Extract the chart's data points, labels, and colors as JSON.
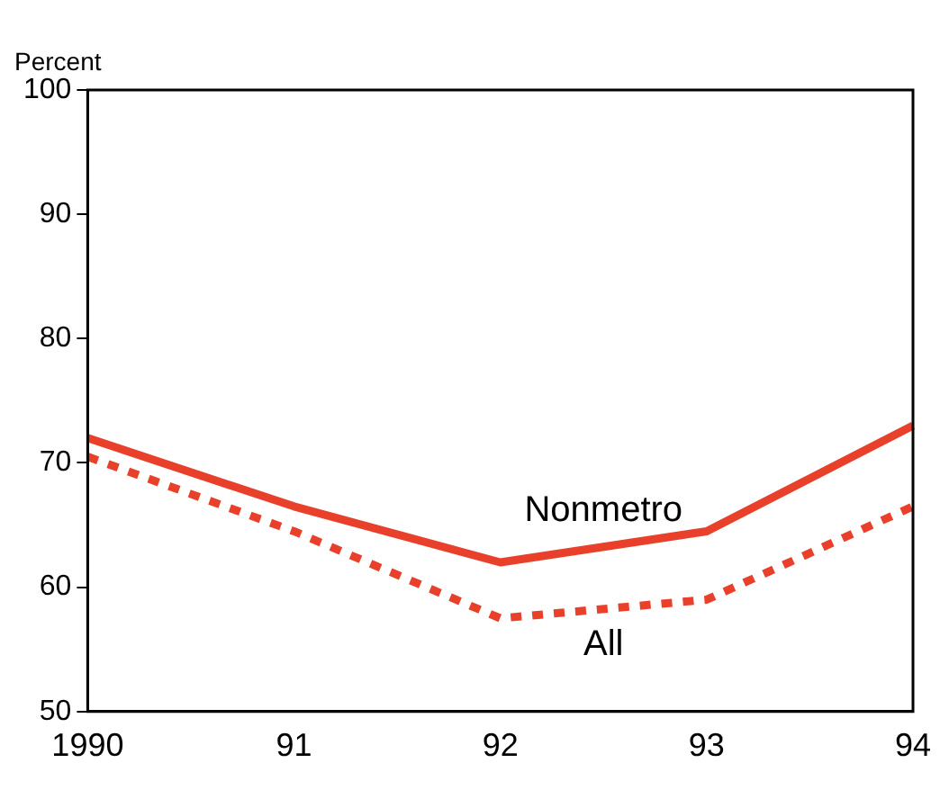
{
  "chart_data": {
    "type": "line",
    "ylabel": "Percent",
    "categories": [
      "1990",
      "91",
      "92",
      "93",
      "94"
    ],
    "series": [
      {
        "name": "Nonmetro",
        "color": "#e8402a",
        "line_style": "solid",
        "values": [
          72,
          66.5,
          62,
          64.5,
          73
        ]
      },
      {
        "name": "All",
        "color": "#e8402a",
        "line_style": "dotted",
        "values": [
          70.5,
          64.5,
          57.5,
          59,
          66.5
        ]
      }
    ],
    "ylim": [
      50,
      100
    ],
    "yticks": [
      50,
      60,
      70,
      80,
      90,
      100
    ],
    "grid": false,
    "legend": false,
    "marker": "none"
  }
}
